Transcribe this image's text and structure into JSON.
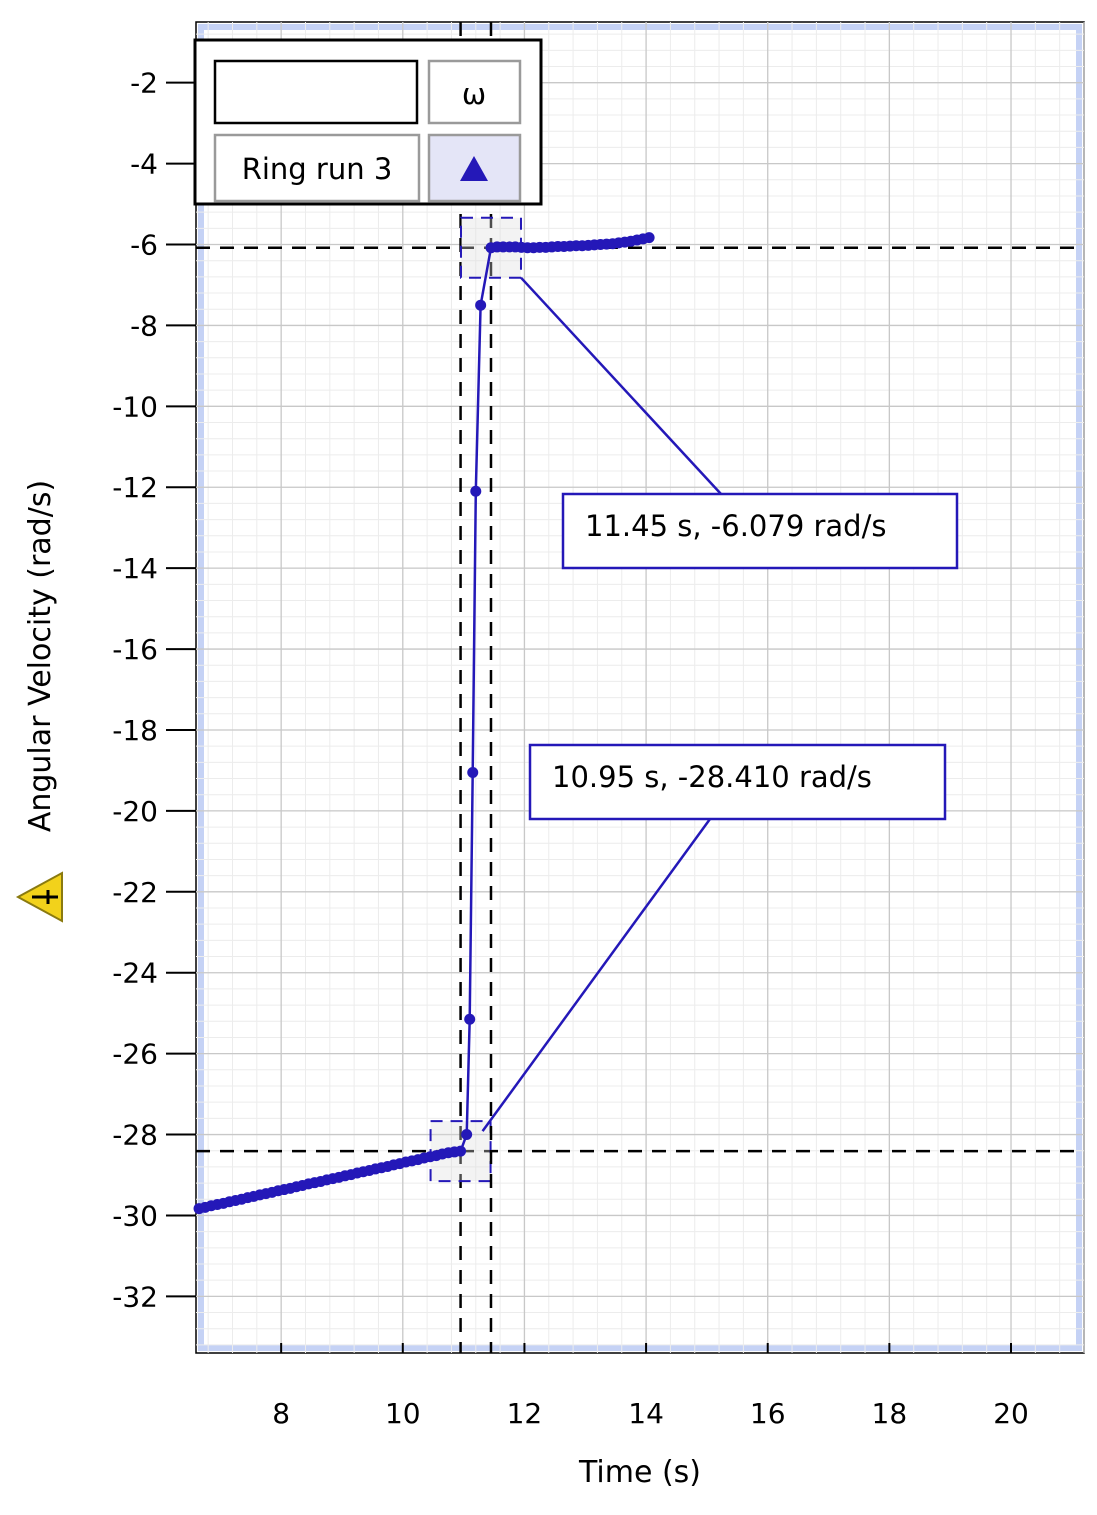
{
  "chart_data": {
    "type": "scatter",
    "title": "",
    "xlabel": "Time (s)",
    "ylabel": "Angular Velocity (rad/s)",
    "xlim": [
      6.6,
      21.2
    ],
    "ylim": [
      -33.4,
      -0.5
    ],
    "x_ticks": [
      8,
      10,
      12,
      14,
      16,
      18,
      20
    ],
    "y_ticks": [
      -2,
      -4,
      -6,
      -8,
      -10,
      -12,
      -14,
      -16,
      -18,
      -20,
      -22,
      -24,
      -26,
      -28,
      -30,
      -32
    ],
    "grid": true,
    "legend_position": "top-left",
    "legend": {
      "column_header": "ω",
      "entries": [
        {
          "label": "Ring run 3",
          "marker": "triangle"
        }
      ]
    },
    "series": [
      {
        "name": "Ring run 3",
        "color": "#2418b8",
        "points": [
          [
            6.65,
            -29.83
          ],
          [
            6.75,
            -29.8
          ],
          [
            6.85,
            -29.76
          ],
          [
            6.95,
            -29.73
          ],
          [
            7.05,
            -29.7
          ],
          [
            7.15,
            -29.66
          ],
          [
            7.25,
            -29.63
          ],
          [
            7.35,
            -29.6
          ],
          [
            7.45,
            -29.56
          ],
          [
            7.55,
            -29.53
          ],
          [
            7.65,
            -29.49
          ],
          [
            7.75,
            -29.46
          ],
          [
            7.85,
            -29.43
          ],
          [
            7.95,
            -29.39
          ],
          [
            8.05,
            -29.36
          ],
          [
            8.15,
            -29.33
          ],
          [
            8.25,
            -29.29
          ],
          [
            8.35,
            -29.26
          ],
          [
            8.45,
            -29.22
          ],
          [
            8.55,
            -29.19
          ],
          [
            8.65,
            -29.16
          ],
          [
            8.75,
            -29.12
          ],
          [
            8.85,
            -29.09
          ],
          [
            8.95,
            -29.06
          ],
          [
            9.05,
            -29.02
          ],
          [
            9.15,
            -28.99
          ],
          [
            9.25,
            -28.95
          ],
          [
            9.35,
            -28.92
          ],
          [
            9.45,
            -28.89
          ],
          [
            9.55,
            -28.85
          ],
          [
            9.65,
            -28.82
          ],
          [
            9.75,
            -28.79
          ],
          [
            9.85,
            -28.75
          ],
          [
            9.95,
            -28.72
          ],
          [
            10.05,
            -28.68
          ],
          [
            10.15,
            -28.65
          ],
          [
            10.25,
            -28.62
          ],
          [
            10.35,
            -28.58
          ],
          [
            10.45,
            -28.55
          ],
          [
            10.55,
            -28.52
          ],
          [
            10.65,
            -28.48
          ],
          [
            10.75,
            -28.45
          ],
          [
            10.85,
            -28.43
          ],
          [
            10.95,
            -28.41
          ],
          [
            11.05,
            -28.0
          ],
          [
            11.1,
            -25.15
          ],
          [
            11.15,
            -19.05
          ],
          [
            11.2,
            -12.1
          ],
          [
            11.28,
            -7.5
          ],
          [
            11.45,
            -6.079
          ],
          [
            11.55,
            -6.06
          ],
          [
            11.65,
            -6.06
          ],
          [
            11.75,
            -6.06
          ],
          [
            11.85,
            -6.06
          ],
          [
            11.95,
            -6.07
          ],
          [
            12.05,
            -6.08
          ],
          [
            12.15,
            -6.08
          ],
          [
            12.25,
            -6.07
          ],
          [
            12.35,
            -6.07
          ],
          [
            12.45,
            -6.06
          ],
          [
            12.55,
            -6.05
          ],
          [
            12.65,
            -6.05
          ],
          [
            12.75,
            -6.04
          ],
          [
            12.85,
            -6.03
          ],
          [
            12.95,
            -6.03
          ],
          [
            13.05,
            -6.02
          ],
          [
            13.15,
            -6.01
          ],
          [
            13.25,
            -6.0
          ],
          [
            13.35,
            -5.99
          ],
          [
            13.45,
            -5.98
          ],
          [
            13.55,
            -5.96
          ],
          [
            13.65,
            -5.94
          ],
          [
            13.75,
            -5.92
          ],
          [
            13.85,
            -5.89
          ],
          [
            13.95,
            -5.86
          ],
          [
            14.05,
            -5.83
          ]
        ]
      }
    ],
    "crosshairs": [
      {
        "x": 10.95,
        "y": -28.41
      },
      {
        "x": 11.45,
        "y": -6.079
      }
    ],
    "annotations": [
      {
        "x": 11.45,
        "y": -6.079,
        "text": "11.45 s, -6.079 rad/s"
      },
      {
        "x": 10.95,
        "y": -28.41,
        "text": "10.95 s, -28.410 rad/s"
      }
    ],
    "icons": {
      "warning": "warning-triangle-icon"
    },
    "colors": {
      "series": "#2418b8",
      "plot_border": "#c5d2f5",
      "grid_major": "#c8c8c8",
      "grid_minor": "#ececec",
      "warning": "#f2d21b"
    }
  }
}
